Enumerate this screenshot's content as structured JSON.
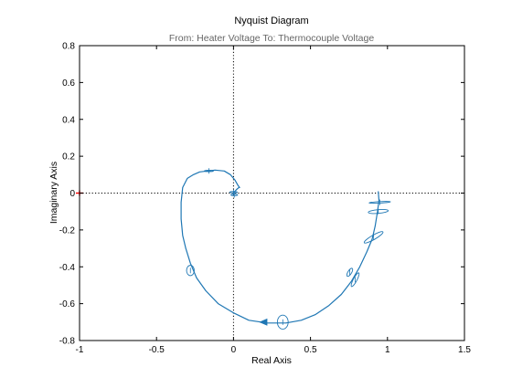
{
  "colors": {
    "curve": "#1f77b4",
    "critical_point": "#ff0000",
    "axes": "#000000",
    "subtitle": "#666666"
  },
  "chart_data": {
    "type": "line",
    "title": "Nyquist Diagram",
    "subtitle": "From: Heater Voltage  To: Thermocouple Voltage",
    "xlabel": "Real Axis",
    "ylabel": "Imaginary Axis",
    "xlim": [
      -1,
      1.5
    ],
    "ylim": [
      -0.8,
      0.8
    ],
    "xticks": [
      -1,
      -0.5,
      0,
      0.5,
      1,
      1.5
    ],
    "xtick_labels": [
      "-1",
      "-0.5",
      "0",
      "0.5",
      "1",
      "1.5"
    ],
    "yticks": [
      -0.8,
      -0.6,
      -0.4,
      -0.2,
      0,
      0.2,
      0.4,
      0.6,
      0.8
    ],
    "ytick_labels": [
      "-0.8",
      "-0.6",
      "-0.4",
      "-0.2",
      "0",
      "0.2",
      "0.4",
      "0.6",
      "0.8"
    ],
    "reference_lines": {
      "x": 0,
      "y": 0,
      "style": "dotted"
    },
    "critical_point": {
      "x": -1,
      "y": 0,
      "marker": "+"
    },
    "series": [
      {
        "x": [
          0.94,
          0.945,
          0.935,
          0.92,
          0.9,
          0.865,
          0.82,
          0.765,
          0.7,
          0.62,
          0.53,
          0.44,
          0.34,
          0.22,
          0.1,
          0.0,
          -0.1,
          -0.18,
          -0.24,
          -0.28,
          -0.31,
          -0.33,
          -0.34,
          -0.34,
          -0.33,
          -0.3,
          -0.26,
          -0.22,
          -0.17,
          -0.12,
          -0.06,
          -0.02,
          0.01,
          0.03,
          0.04,
          0.035,
          0.02,
          0.005,
          0.0,
          0.0
        ],
        "y": [
          0.01,
          -0.04,
          -0.1,
          -0.18,
          -0.25,
          -0.32,
          -0.4,
          -0.48,
          -0.55,
          -0.61,
          -0.66,
          -0.69,
          -0.705,
          -0.705,
          -0.69,
          -0.65,
          -0.6,
          -0.53,
          -0.46,
          -0.38,
          -0.3,
          -0.23,
          -0.14,
          -0.05,
          0.03,
          0.08,
          0.1,
          0.115,
          0.12,
          0.125,
          0.12,
          0.1,
          0.07,
          0.04,
          0.03,
          0.03,
          0.02,
          0.005,
          -0.005,
          -0.01
        ]
      }
    ],
    "direction_arrow": {
      "x": 0.2,
      "y": -0.7,
      "direction": "left"
    },
    "confidence_ellipses": [
      {
        "x": 0.95,
        "y": -0.05,
        "rx": 0.07,
        "ry": 0.004,
        "angle_deg": -3
      },
      {
        "x": 0.94,
        "y": -0.1,
        "rx": 0.065,
        "ry": 0.01,
        "angle_deg": -5
      },
      {
        "x": 0.91,
        "y": -0.24,
        "rx": 0.07,
        "ry": 0.012,
        "angle_deg": -30
      },
      {
        "x": 0.79,
        "y": -0.47,
        "rx": 0.05,
        "ry": 0.01,
        "angle_deg": -62
      },
      {
        "x": 0.755,
        "y": -0.43,
        "rx": 0.03,
        "ry": 0.01,
        "angle_deg": -58
      },
      {
        "x": 0.32,
        "y": -0.7,
        "rx": 0.035,
        "ry": 0.038,
        "angle_deg": 0
      },
      {
        "x": -0.28,
        "y": -0.42,
        "rx": 0.025,
        "ry": 0.028,
        "angle_deg": 0
      },
      {
        "x": -0.16,
        "y": 0.12,
        "rx": 0.03,
        "ry": 0.004,
        "angle_deg": 0
      },
      {
        "x": 0.0,
        "y": 0.005,
        "rx": 0.025,
        "ry": 0.004,
        "angle_deg": 0
      },
      {
        "x": 0.005,
        "y": -0.01,
        "rx": 0.022,
        "ry": 0.004,
        "angle_deg": 0
      }
    ],
    "grid": false,
    "legend": "none"
  }
}
